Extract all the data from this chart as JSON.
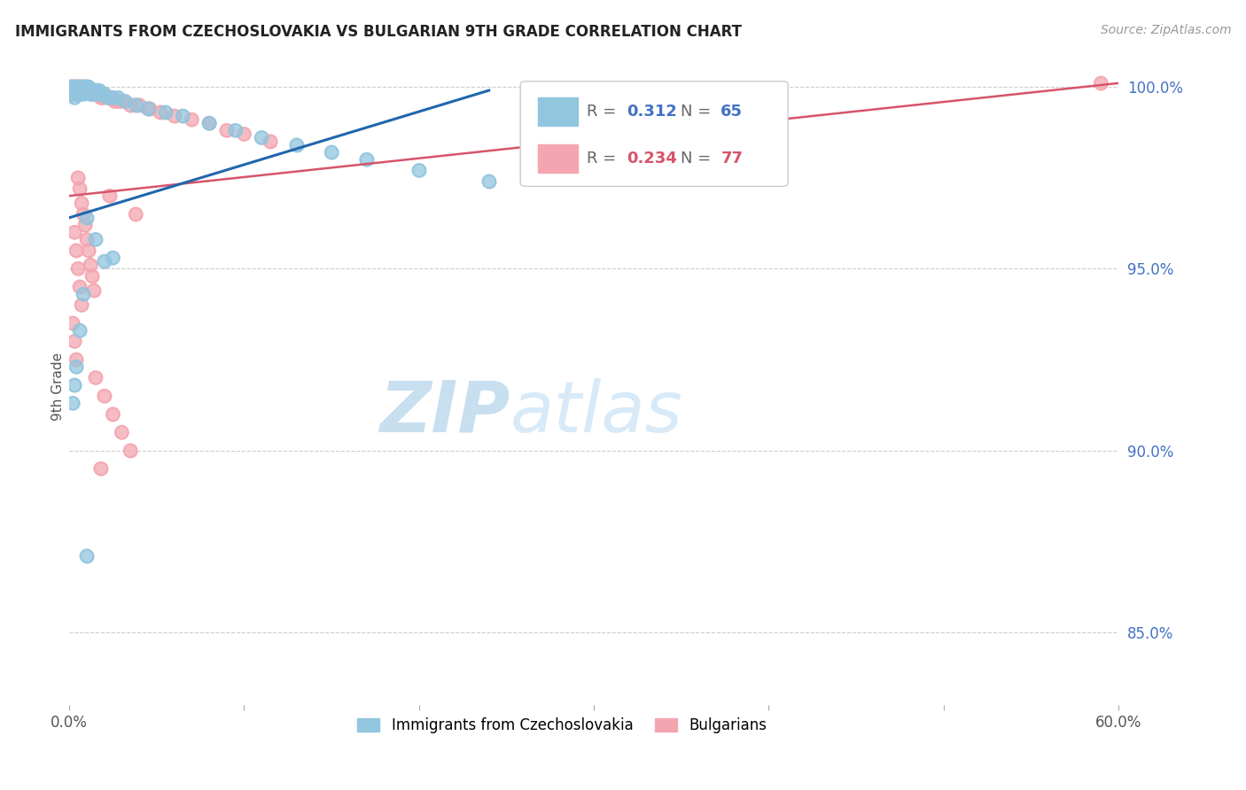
{
  "title": "IMMIGRANTS FROM CZECHOSLOVAKIA VS BULGARIAN 9TH GRADE CORRELATION CHART",
  "source_text": "Source: ZipAtlas.com",
  "ylabel": "9th Grade",
  "xlim": [
    0.0,
    0.6
  ],
  "ylim": [
    0.83,
    1.005
  ],
  "yticks_right": [
    0.85,
    0.9,
    0.95,
    1.0
  ],
  "ytick_right_labels": [
    "85.0%",
    "90.0%",
    "95.0%",
    "100.0%"
  ],
  "blue_color": "#92c5de",
  "pink_color": "#f4a6b0",
  "trend_blue": "#2166ac",
  "trend_pink": "#d6546a",
  "legend_label1": "Immigrants from Czechoslovakia",
  "legend_label2": "Bulgarians",
  "watermark_zip_color": "#c8dff0",
  "watermark_atlas_color": "#d8eaf8",
  "blue_x": [
    0.001,
    0.001,
    0.001,
    0.002,
    0.002,
    0.002,
    0.003,
    0.003,
    0.003,
    0.003,
    0.004,
    0.004,
    0.004,
    0.005,
    0.005,
    0.005,
    0.006,
    0.006,
    0.006,
    0.007,
    0.007,
    0.008,
    0.008,
    0.008,
    0.009,
    0.009,
    0.01,
    0.01,
    0.011,
    0.011,
    0.012,
    0.013,
    0.014,
    0.015,
    0.016,
    0.017,
    0.018,
    0.02,
    0.022,
    0.025,
    0.028,
    0.032,
    0.038,
    0.045,
    0.055,
    0.065,
    0.08,
    0.095,
    0.11,
    0.13,
    0.15,
    0.17,
    0.2,
    0.24,
    0.01,
    0.015,
    0.02,
    0.008,
    0.006,
    0.004,
    0.003,
    0.002,
    0.025,
    0.32,
    0.01
  ],
  "blue_y": [
    1.0,
    0.999,
    0.998,
    1.0,
    0.999,
    0.998,
    1.0,
    0.999,
    0.998,
    0.997,
    1.0,
    0.999,
    0.998,
    1.0,
    0.999,
    0.998,
    1.0,
    0.999,
    0.998,
    1.0,
    0.999,
    1.0,
    0.999,
    0.998,
    1.0,
    0.999,
    1.0,
    0.999,
    1.0,
    0.999,
    0.998,
    0.999,
    0.998,
    0.999,
    0.998,
    0.999,
    0.998,
    0.998,
    0.997,
    0.997,
    0.997,
    0.996,
    0.995,
    0.994,
    0.993,
    0.992,
    0.99,
    0.988,
    0.986,
    0.984,
    0.982,
    0.98,
    0.977,
    0.974,
    0.964,
    0.958,
    0.952,
    0.943,
    0.933,
    0.923,
    0.918,
    0.913,
    0.953,
    0.999,
    0.871
  ],
  "pink_x": [
    0.001,
    0.001,
    0.001,
    0.002,
    0.002,
    0.002,
    0.003,
    0.003,
    0.003,
    0.004,
    0.004,
    0.004,
    0.005,
    0.005,
    0.005,
    0.006,
    0.006,
    0.007,
    0.007,
    0.008,
    0.008,
    0.009,
    0.009,
    0.01,
    0.01,
    0.011,
    0.012,
    0.013,
    0.014,
    0.015,
    0.016,
    0.017,
    0.018,
    0.019,
    0.02,
    0.022,
    0.024,
    0.026,
    0.028,
    0.03,
    0.035,
    0.04,
    0.046,
    0.052,
    0.06,
    0.07,
    0.08,
    0.09,
    0.1,
    0.115,
    0.005,
    0.006,
    0.007,
    0.008,
    0.009,
    0.01,
    0.011,
    0.012,
    0.013,
    0.014,
    0.003,
    0.004,
    0.005,
    0.006,
    0.007,
    0.002,
    0.003,
    0.004,
    0.015,
    0.02,
    0.025,
    0.03,
    0.035,
    0.018,
    0.023,
    0.038,
    0.59
  ],
  "pink_y": [
    1.0,
    0.999,
    0.998,
    1.0,
    0.999,
    0.998,
    1.0,
    0.999,
    0.998,
    1.0,
    0.999,
    0.998,
    1.0,
    0.999,
    0.998,
    1.0,
    0.999,
    1.0,
    0.999,
    1.0,
    0.999,
    1.0,
    0.999,
    1.0,
    0.999,
    0.999,
    0.999,
    0.998,
    0.998,
    0.999,
    0.998,
    0.998,
    0.997,
    0.997,
    0.998,
    0.997,
    0.997,
    0.996,
    0.996,
    0.996,
    0.995,
    0.995,
    0.994,
    0.993,
    0.992,
    0.991,
    0.99,
    0.988,
    0.987,
    0.985,
    0.975,
    0.972,
    0.968,
    0.965,
    0.962,
    0.958,
    0.955,
    0.951,
    0.948,
    0.944,
    0.96,
    0.955,
    0.95,
    0.945,
    0.94,
    0.935,
    0.93,
    0.925,
    0.92,
    0.915,
    0.91,
    0.905,
    0.9,
    0.895,
    0.97,
    0.965,
    1.001
  ],
  "trend_blue_x0": 0.0,
  "trend_blue_y0": 0.964,
  "trend_blue_x1": 0.24,
  "trend_blue_y1": 0.999,
  "trend_pink_x0": 0.0,
  "trend_pink_y0": 0.97,
  "trend_pink_x1": 0.6,
  "trend_pink_y1": 1.001
}
